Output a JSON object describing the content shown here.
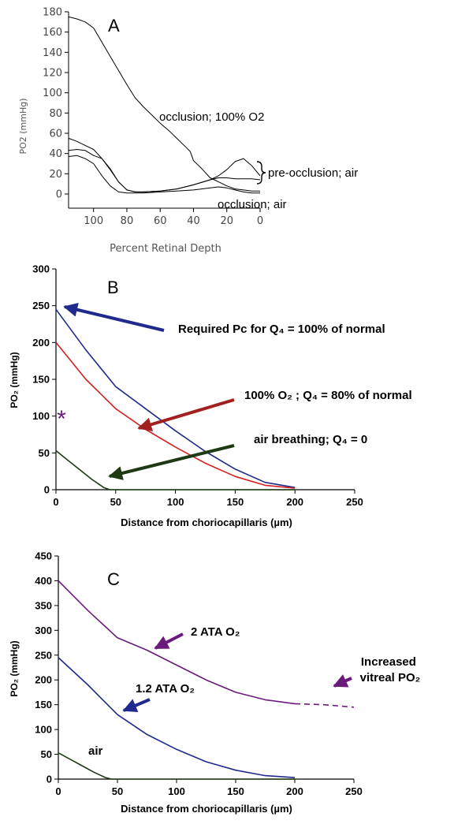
{
  "chart_data": [
    {
      "panel_label": "A",
      "type": "line",
      "xlabel": "Percent Retinal Depth",
      "ylabel": "PO2 (mmHg)",
      "xlim": [
        115,
        0
      ],
      "ylim": [
        0,
        180
      ],
      "x_ticks": [
        100,
        80,
        60,
        40,
        20,
        0
      ],
      "y_ticks": [
        0,
        20,
        40,
        60,
        80,
        100,
        120,
        140,
        160,
        180
      ],
      "x_reversed": true,
      "grid": false,
      "annotations": [
        "occlusion; 100% O2",
        "pre-occlusion; air",
        "occlusion; air"
      ],
      "series": [
        {
          "name": "occlusion; 100% O2",
          "x": [
            115,
            110,
            105,
            100,
            95,
            90,
            85,
            80,
            75,
            70,
            65,
            60,
            55,
            50,
            45,
            42,
            40,
            35,
            30,
            25,
            20,
            15,
            10,
            5,
            0
          ],
          "y": [
            175,
            173,
            170,
            164,
            150,
            136,
            122,
            108,
            95,
            86,
            78,
            70,
            63,
            55,
            47,
            42,
            33,
            25,
            16,
            12,
            8,
            5,
            4,
            3,
            3
          ]
        },
        {
          "name": "pre-occlusion; air (upper)",
          "x": [
            115,
            110,
            105,
            100,
            95,
            90,
            85,
            80,
            75,
            70,
            60,
            50,
            40,
            30,
            25,
            20,
            15,
            10,
            5,
            0
          ],
          "y": [
            55,
            52,
            48,
            44,
            35,
            24,
            12,
            4,
            2,
            2,
            3,
            5,
            9,
            14,
            18,
            24,
            32,
            35,
            28,
            18
          ]
        },
        {
          "name": "pre-occlusion; air (lower)",
          "x": [
            115,
            110,
            105,
            100,
            95,
            90,
            85,
            80,
            75,
            70,
            60,
            50,
            40,
            30,
            25,
            20,
            15,
            10,
            5,
            0
          ],
          "y": [
            43,
            44,
            43,
            38,
            35,
            25,
            12,
            4,
            2,
            2,
            3,
            5,
            9,
            14,
            16,
            16,
            15,
            15,
            15,
            14
          ]
        },
        {
          "name": "occlusion; air",
          "x": [
            115,
            110,
            105,
            100,
            95,
            90,
            85,
            80,
            75,
            70,
            60,
            50,
            40,
            30,
            25,
            20,
            15,
            10,
            5,
            0
          ],
          "y": [
            37,
            38,
            35,
            30,
            18,
            8,
            2,
            1,
            1,
            1,
            2,
            3,
            4,
            6,
            7,
            6,
            4,
            2,
            1,
            1
          ]
        }
      ]
    },
    {
      "panel_label": "B",
      "type": "line",
      "xlabel": "Distance from choriocapillaris (µm)",
      "ylabel": "PO₂ (mmHg)",
      "xlim": [
        0,
        250
      ],
      "ylim": [
        0,
        300
      ],
      "x_ticks": [
        0,
        50,
        100,
        150,
        200,
        250
      ],
      "y_ticks": [
        0,
        50,
        100,
        150,
        200,
        250,
        300
      ],
      "grid": false,
      "marker_text": "*",
      "annotations": [
        "Required Pc for Q₄ = 100% of normal",
        "100% O₂ ; Q₄ = 80% of normal",
        "air breathing; Q₄ = 0"
      ],
      "series": [
        {
          "name": "Required Pc for Q₄ = 100% of normal",
          "color": "#1f2a8c",
          "x": [
            0,
            25,
            50,
            75,
            100,
            125,
            150,
            175,
            200
          ],
          "y": [
            245,
            190,
            140,
            110,
            80,
            52,
            28,
            10,
            3
          ]
        },
        {
          "name": "100% O₂ ; Q₄ = 80% of normal",
          "color": "#d32020",
          "x": [
            0,
            25,
            50,
            75,
            100,
            125,
            150,
            175,
            200
          ],
          "y": [
            200,
            150,
            110,
            82,
            58,
            36,
            18,
            6,
            2
          ]
        },
        {
          "name": "air breathing; Q₄ = 0",
          "color": "#1e3a14",
          "x": [
            0,
            10,
            20,
            30,
            40,
            45,
            50,
            100,
            150,
            200
          ],
          "y": [
            53,
            40,
            27,
            14,
            3,
            0,
            0,
            0,
            0,
            0
          ]
        }
      ]
    },
    {
      "panel_label": "C",
      "type": "line",
      "xlabel": "Distance from choriocapillaris (µm)",
      "ylabel": "PO₂ (mmHg)",
      "xlim": [
        0,
        250
      ],
      "ylim": [
        0,
        450
      ],
      "x_ticks": [
        0,
        50,
        100,
        150,
        200,
        250
      ],
      "y_ticks": [
        0,
        50,
        100,
        150,
        200,
        250,
        300,
        350,
        400,
        450
      ],
      "grid": false,
      "annotations": [
        "2 ATA O₂",
        "1.2 ATA O₂",
        "air",
        "Increased vitreal PO₂"
      ],
      "series": [
        {
          "name": "2 ATA O₂",
          "color": "#6a1b7a",
          "x": [
            0,
            25,
            50,
            75,
            100,
            125,
            150,
            175,
            200
          ],
          "y": [
            400,
            340,
            285,
            260,
            230,
            200,
            175,
            160,
            152
          ]
        },
        {
          "name": "Increased vitreal PO₂",
          "color": "#6a1b7a",
          "dashed": true,
          "x": [
            200,
            225,
            250
          ],
          "y": [
            152,
            150,
            145
          ]
        },
        {
          "name": "1.2 ATA O₂",
          "color": "#1f2a8c",
          "x": [
            0,
            25,
            50,
            75,
            100,
            125,
            150,
            175,
            200
          ],
          "y": [
            245,
            190,
            130,
            90,
            60,
            35,
            18,
            7,
            3
          ]
        },
        {
          "name": "air",
          "color": "#1e3a14",
          "x": [
            0,
            10,
            20,
            30,
            40,
            45,
            50,
            100,
            150,
            200
          ],
          "y": [
            53,
            40,
            27,
            14,
            3,
            0,
            0,
            0,
            0,
            0
          ]
        }
      ]
    }
  ]
}
